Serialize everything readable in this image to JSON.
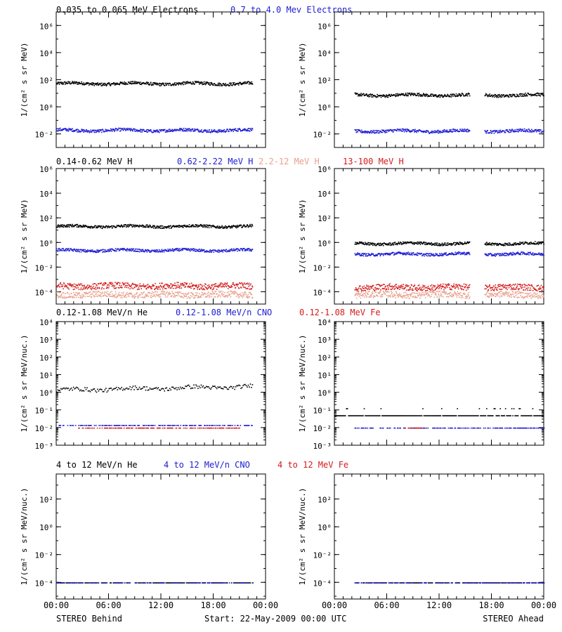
{
  "rows": [
    {
      "legend": [
        {
          "text": "0.035 to 0.065 MeV Electrons",
          "color": "#000000"
        },
        {
          "text": "0.7 to 4.0 Mev Electrons",
          "color": "#1c1cd4"
        }
      ],
      "ylabel": "1/(cm² s sr MeV)",
      "yticks": [
        "10⁻²",
        "10⁰",
        "10²",
        "10⁴",
        "10⁶"
      ]
    },
    {
      "legend": [
        {
          "text": "0.14-0.62 MeV H",
          "color": "#000000"
        },
        {
          "text": "0.62-2.22 MeV H",
          "color": "#1c1cd4"
        },
        {
          "text": "2.2-12 MeV H",
          "color": "#e8a08c"
        },
        {
          "text": "13-100 MeV H",
          "color": "#d41c1c"
        }
      ],
      "ylabel": "1/(cm² s sr MeV)",
      "yticks": [
        "10⁻⁴",
        "10⁻²",
        "10⁰",
        "10²",
        "10⁴",
        "10⁶"
      ]
    },
    {
      "legend": [
        {
          "text": "0.12-1.08 MeV/n He",
          "color": "#000000"
        },
        {
          "text": "0.12-1.08 MeV/n CNO",
          "color": "#1c1cd4"
        },
        {
          "text": "0.12-1.08 MeV Fe",
          "color": "#d41c1c"
        }
      ],
      "ylabel": "1/(cm² s sr MeV/nuc.)",
      "yticks": [
        "10⁻³",
        "10⁻²",
        "10⁻¹",
        "10⁰",
        "10¹",
        "10²",
        "10³",
        "10⁴"
      ]
    },
    {
      "legend": [
        {
          "text": "4 to 12 MeV/n He",
          "color": "#000000"
        },
        {
          "text": "4 to 12 MeV/n CNO",
          "color": "#1c1cd4"
        },
        {
          "text": "4 to 12 MeV Fe",
          "color": "#d41c1c"
        }
      ],
      "ylabel": "1/(cm² s sr MeV/nuc.)",
      "yticks": [
        "10⁻⁴",
        "10⁻²",
        "10⁰",
        "10²"
      ]
    }
  ],
  "xticks": [
    "00:00",
    "06:00",
    "12:00",
    "18:00",
    "00:00"
  ],
  "footer": {
    "left": "STEREO Behind",
    "center": "Start: 22-May-2009 00:00 UTC",
    "right": "STEREO Ahead"
  },
  "chart_data": [
    {
      "type": "scatter",
      "panel": "electrons-behind",
      "x_unit": "hours",
      "xlim": [
        0,
        24
      ],
      "ylim_log10": [
        -3,
        7
      ],
      "yscale": "log",
      "series": [
        {
          "name": "0.035 to 0.065 MeV Electrons",
          "log10_level": 1.75,
          "x_range": [
            0,
            22.5
          ]
        },
        {
          "name": "0.7 to 4.0 Mev Electrons",
          "log10_level": -1.7,
          "x_range": [
            0,
            22.5
          ]
        }
      ]
    },
    {
      "type": "scatter",
      "panel": "electrons-ahead",
      "x_unit": "hours",
      "xlim": [
        0,
        24
      ],
      "ylim_log10": [
        -3,
        7
      ],
      "yscale": "log",
      "gaps": [
        [
          15.5,
          17.2
        ]
      ],
      "series": [
        {
          "name": "0.035 to 0.065 MeV Electrons",
          "log10_level": 0.9,
          "x_range": [
            2.3,
            24
          ]
        },
        {
          "name": "0.7 to 4.0 Mev Electrons",
          "log10_level": -1.75,
          "x_range": [
            2.3,
            24
          ]
        }
      ]
    },
    {
      "type": "scatter",
      "panel": "protons-behind",
      "x_unit": "hours",
      "xlim": [
        0,
        24
      ],
      "ylim_log10": [
        -5,
        6
      ],
      "yscale": "log",
      "series": [
        {
          "name": "0.14-0.62 MeV H",
          "log10_level": 1.35,
          "x_range": [
            0,
            22.5
          ]
        },
        {
          "name": "0.62-2.22 MeV H",
          "log10_level": -0.6,
          "x_range": [
            0,
            22.5
          ]
        },
        {
          "name": "13-100 MeV H",
          "log10_level": -3.5,
          "x_range": [
            0,
            22.5
          ]
        },
        {
          "name": "2.2-12 MeV H",
          "log10_level": -4.2,
          "x_range": [
            0,
            22.5
          ]
        }
      ]
    },
    {
      "type": "scatter",
      "panel": "protons-ahead",
      "x_unit": "hours",
      "xlim": [
        0,
        24
      ],
      "ylim_log10": [
        -5,
        6
      ],
      "yscale": "log",
      "gaps": [
        [
          15.5,
          17.2
        ]
      ],
      "series": [
        {
          "name": "0.14-0.62 MeV H",
          "log10_level": -0.05,
          "x_range": [
            2.3,
            24
          ]
        },
        {
          "name": "0.62-2.22 MeV H",
          "log10_level": -0.9,
          "x_range": [
            2.3,
            24
          ]
        },
        {
          "name": "13-100 MeV H",
          "log10_level": -3.6,
          "x_range": [
            2.3,
            24
          ]
        },
        {
          "name": "2.2-12 MeV H",
          "log10_level": -4.2,
          "x_range": [
            2.3,
            24
          ]
        }
      ]
    },
    {
      "type": "scatter",
      "panel": "heavy-low-behind",
      "x_unit": "hours",
      "xlim": [
        0,
        24
      ],
      "ylim_log10": [
        -3,
        4
      ],
      "yscale": "log",
      "series": [
        {
          "name": "0.12-1.08 MeV/n He",
          "log10_level": 0.15,
          "log10_level_end": 0.35,
          "x_range": [
            0,
            22.5
          ]
        },
        {
          "name": "0.12-1.08 MeV/n CNO",
          "log10_level": -1.85,
          "x_range": [
            0,
            22.5
          ]
        },
        {
          "name": "0.12-1.08 MeV Fe",
          "log10_level": -2.0,
          "x_range": [
            2.5,
            21.0
          ]
        }
      ]
    },
    {
      "type": "scatter",
      "panel": "heavy-low-ahead",
      "x_unit": "hours",
      "xlim": [
        0,
        24
      ],
      "ylim_log10": [
        -3,
        4
      ],
      "yscale": "log",
      "series": [
        {
          "name": "0.12-1.08 MeV/n He",
          "log10_level": -1.3,
          "x_range": [
            0,
            24
          ]
        },
        {
          "name": "0.12-1.08 MeV/n CNO",
          "log10_level": -2.0,
          "x_range": [
            2.3,
            24
          ]
        },
        {
          "name": "0.12-1.08 MeV Fe",
          "log10_level": -2.0,
          "x_range": [
            8.0,
            10.0
          ]
        }
      ]
    },
    {
      "type": "scatter",
      "panel": "heavy-high-behind",
      "x_unit": "hours",
      "xlim": [
        0,
        24
      ],
      "ylim_log10": [
        -5.2,
        3.8
      ],
      "yscale": "log",
      "series": [
        {
          "name": "4 to 12 MeV/n He",
          "log10_level": -4.0,
          "x_range": [
            0,
            22.5
          ]
        },
        {
          "name": "4 to 12 MeV/n CNO",
          "log10_level": -4.0,
          "x_range": [
            0,
            22.5
          ]
        }
      ]
    },
    {
      "type": "scatter",
      "panel": "heavy-high-ahead",
      "x_unit": "hours",
      "xlim": [
        0,
        24
      ],
      "ylim_log10": [
        -5.2,
        3.8
      ],
      "yscale": "log",
      "series": [
        {
          "name": "4 to 12 MeV/n He",
          "log10_level": -4.0,
          "x_range": [
            2.3,
            24
          ]
        },
        {
          "name": "4 to 12 MeV/n CNO",
          "log10_level": -4.0,
          "x_range": [
            2.3,
            24
          ]
        }
      ]
    }
  ]
}
